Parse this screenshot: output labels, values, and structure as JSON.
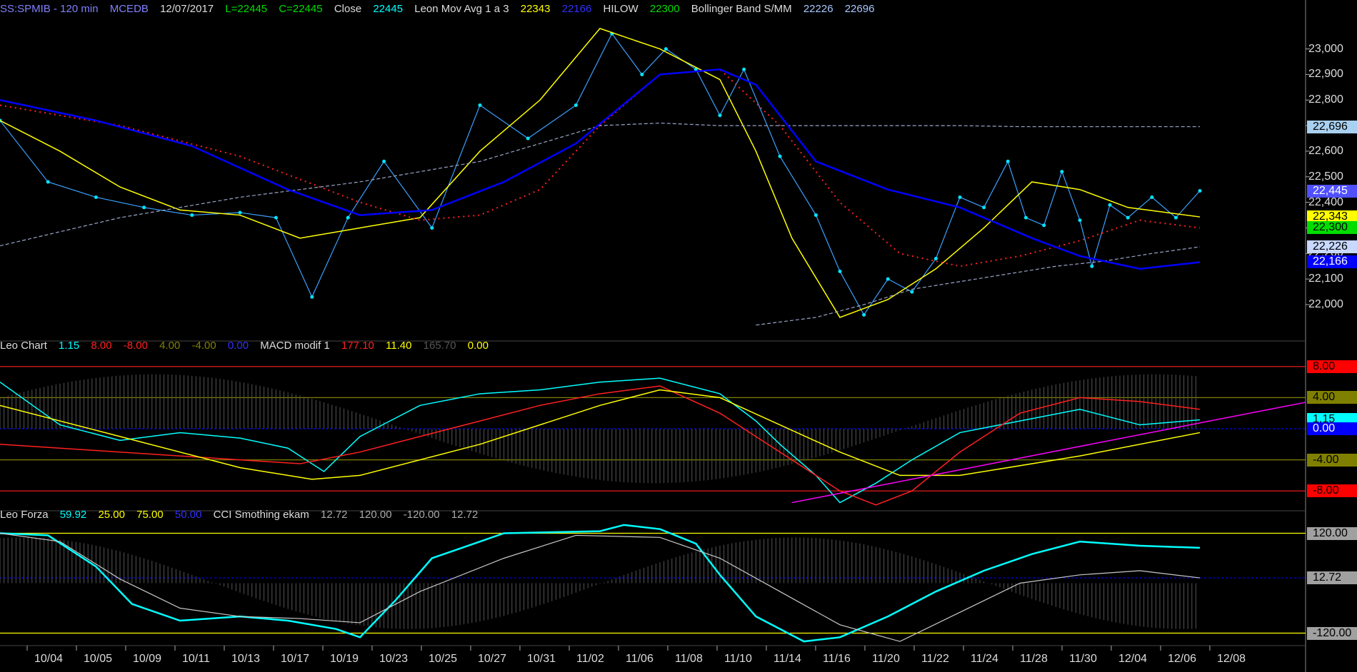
{
  "header": {
    "symbol": "SS:SPMIB - 120 min",
    "source": "MCEDB",
    "date": "12/07/2017",
    "low": "L=22445",
    "close_eq": "C=22445",
    "close_label": "Close",
    "close_val": "22445",
    "leon_label": "Leon Mov Avg 1 a 3",
    "leon_v1": "22343",
    "leon_v2": "22166",
    "hilow_label": "HILOW",
    "hilow_v": "22300",
    "bb_label": "Bollinger Band S/MM",
    "bb_v1": "22226",
    "bb_v2": "22696"
  },
  "header2": {
    "label": "Leo Chart",
    "v1": "1.15",
    "v2": "8.00",
    "v3": "-8.00",
    "v4": "4.00",
    "v5": "-4.00",
    "v6": "0.00",
    "macd_label": "MACD modif 1",
    "m1": "177.10",
    "m2": "11.40",
    "m3": "165.70",
    "m4": "0.00"
  },
  "header3": {
    "label": "Leo Forza",
    "v1": "59.92",
    "v2": "25.00",
    "v3": "75.00",
    "v4": "50.00",
    "cci_label": "CCI Smothing ekam",
    "c1": "12.72",
    "c2": "120.00",
    "c3": "-120.00",
    "c4": "12.72"
  },
  "colors": {
    "price": "#3aa0ff",
    "dot": "#00e5ff",
    "yellow": "#ffff00",
    "blue": "#0000ff",
    "red": "#ff2020",
    "green": "#00dd00",
    "grey": "#9aa6c8",
    "magenta": "#ff00ff",
    "cyan": "#00ffff"
  },
  "chart_data": [
    {
      "type": "line",
      "title": "SS:SPMIB - 120 min",
      "ylim": [
        21880,
        23130
      ],
      "y_ticks": [
        "22,000",
        "22,100",
        "22,200",
        "22,300",
        "22,400",
        "22,500",
        "22,600",
        "22,700",
        "22,800",
        "22,900",
        "23,000"
      ],
      "x_ticks": [
        "10/04",
        "10/05",
        "10/09",
        "10/11",
        "10/13",
        "10/17",
        "10/19",
        "10/23",
        "10/25",
        "10/27",
        "10/31",
        "11/02",
        "11/06",
        "11/08",
        "11/10",
        "11/14",
        "11/16",
        "11/20",
        "11/22",
        "11/24",
        "11/28",
        "11/30",
        "12/04",
        "12/06",
        "12/08"
      ],
      "value_badges": [
        {
          "text": "22,696",
          "value": 22696,
          "bg": "#a8d0f0",
          "fg": "#000000"
        },
        {
          "text": "22,445",
          "value": 22445,
          "bg": "#5050ff",
          "fg": "#ffffff"
        },
        {
          "text": "22,343",
          "value": 22343,
          "bg": "#ffff00",
          "fg": "#000000"
        },
        {
          "text": "22,300",
          "value": 22300,
          "bg": "#00dd00",
          "fg": "#000000"
        },
        {
          "text": "22,226",
          "value": 22226,
          "bg": "#c8d8ff",
          "fg": "#000000"
        },
        {
          "text": "22,166",
          "value": 22166,
          "bg": "#0000ff",
          "fg": "#ffffff"
        }
      ],
      "series": [
        {
          "name": "Close",
          "x_frac": [
            0,
            0.04,
            0.08,
            0.12,
            0.16,
            0.2,
            0.23,
            0.26,
            0.29,
            0.32,
            0.36,
            0.4,
            0.44,
            0.48,
            0.51,
            0.535,
            0.555,
            0.58,
            0.6,
            0.62,
            0.65,
            0.68,
            0.7,
            0.72,
            0.74,
            0.76,
            0.78,
            0.8,
            0.82,
            0.84,
            0.855,
            0.87,
            0.885,
            0.9,
            0.91,
            0.925,
            0.94,
            0.96,
            0.98,
            1.0
          ],
          "values": [
            22720,
            22480,
            22420,
            22380,
            22350,
            22360,
            22340,
            22030,
            22340,
            22560,
            22300,
            22780,
            22650,
            22780,
            23060,
            22900,
            23000,
            22920,
            22740,
            22920,
            22580,
            22350,
            22130,
            21960,
            22100,
            22050,
            22180,
            22420,
            22380,
            22560,
            22340,
            22310,
            22520,
            22330,
            22150,
            22390,
            22340,
            22420,
            22340,
            22445
          ]
        },
        {
          "name": "Leon Mov Avg 1 a 3",
          "x_frac": [
            0,
            0.05,
            0.1,
            0.15,
            0.2,
            0.25,
            0.3,
            0.35,
            0.4,
            0.45,
            0.5,
            0.55,
            0.6,
            0.63,
            0.66,
            0.7,
            0.74,
            0.78,
            0.82,
            0.86,
            0.9,
            0.94,
            1.0
          ],
          "values": [
            22720,
            22600,
            22460,
            22370,
            22350,
            22260,
            22300,
            22340,
            22600,
            22800,
            23080,
            23000,
            22880,
            22600,
            22260,
            21950,
            22020,
            22140,
            22300,
            22480,
            22450,
            22380,
            22343
          ]
        },
        {
          "name": "HILOW",
          "x_frac": [
            0,
            0.1,
            0.2,
            0.3,
            0.35,
            0.4,
            0.45,
            0.5,
            0.55,
            0.6,
            0.65,
            0.7,
            0.75,
            0.8,
            0.85,
            0.9,
            0.95,
            1.0
          ],
          "values": [
            22780,
            22700,
            22580,
            22400,
            22330,
            22350,
            22450,
            22700,
            22900,
            22920,
            22700,
            22400,
            22200,
            22150,
            22190,
            22250,
            22330,
            22300
          ]
        },
        {
          "name": "Bollinger Band S/MM",
          "x_frac": [
            0,
            0.1,
            0.2,
            0.3,
            0.4,
            0.5,
            0.55,
            0.6,
            0.65,
            0.7,
            0.75,
            0.8,
            0.85,
            0.9,
            0.95,
            1.0
          ],
          "values": [
            22230,
            22340,
            22420,
            22480,
            22560,
            22700,
            22710,
            22700,
            22700,
            22700,
            22700,
            22700,
            22696,
            22696,
            22696,
            22696
          ]
        },
        {
          "name": "Lower band",
          "x_frac": [
            0.63,
            0.68,
            0.72,
            0.76,
            0.8,
            0.84,
            0.88,
            0.92,
            0.96,
            1.0
          ],
          "values": [
            21920,
            21950,
            22000,
            22060,
            22090,
            22120,
            22150,
            22170,
            22200,
            22226
          ]
        },
        {
          "name": "Blue MA",
          "x_frac": [
            0,
            0.08,
            0.16,
            0.24,
            0.3,
            0.36,
            0.42,
            0.48,
            0.55,
            0.6,
            0.63,
            0.68,
            0.74,
            0.8,
            0.86,
            0.9,
            0.95,
            1.0
          ],
          "values": [
            22800,
            22720,
            22620,
            22450,
            22350,
            22370,
            22480,
            22630,
            22900,
            22920,
            22860,
            22560,
            22450,
            22380,
            22260,
            22190,
            22140,
            22166
          ]
        }
      ]
    },
    {
      "type": "line",
      "title": "Leo Chart / MACD modif 1",
      "ylim": [
        -10,
        10
      ],
      "levels": [
        8,
        4,
        0,
        -4,
        -8
      ],
      "badges": [
        {
          "text": "8.00",
          "value": 8,
          "bg": "#ff0000",
          "fg": "#000000"
        },
        {
          "text": "4.00",
          "value": 4,
          "bg": "#808000",
          "fg": "#000000"
        },
        {
          "text": "1.15",
          "value": 1.15,
          "bg": "#00ffff",
          "fg": "#000000"
        },
        {
          "text": "0.00",
          "value": 0,
          "bg": "#0000ff",
          "fg": "#ffffff"
        },
        {
          "text": "-4.00",
          "value": -4,
          "bg": "#808000",
          "fg": "#000000"
        },
        {
          "text": "-8.00",
          "value": -8,
          "bg": "#ff0000",
          "fg": "#000000"
        }
      ],
      "series": [
        {
          "name": "Leo Chart",
          "x_frac": [
            0,
            0.05,
            0.1,
            0.15,
            0.2,
            0.24,
            0.27,
            0.3,
            0.35,
            0.4,
            0.45,
            0.5,
            0.55,
            0.6,
            0.63,
            0.65,
            0.68,
            0.7,
            0.73,
            0.76,
            0.8,
            0.85,
            0.9,
            0.95,
            1.0
          ],
          "values": [
            6,
            0.5,
            -1.5,
            -0.5,
            -1.2,
            -2.5,
            -5.5,
            -1,
            3,
            4.5,
            5,
            6,
            6.5,
            4.5,
            1,
            -2,
            -6,
            -9.5,
            -7,
            -4,
            -0.5,
            1,
            2.5,
            0.5,
            1.15
          ]
        },
        {
          "name": "MACD modif 1",
          "x_frac": [
            0,
            0.1,
            0.2,
            0.25,
            0.3,
            0.35,
            0.4,
            0.45,
            0.5,
            0.55,
            0.6,
            0.65,
            0.7,
            0.73,
            0.76,
            0.8,
            0.85,
            0.9,
            0.95,
            1.0
          ],
          "values": [
            -2,
            -3,
            -4,
            -4.5,
            -3,
            -1,
            1,
            3,
            4.5,
            5.5,
            2,
            -3,
            -8,
            -9.8,
            -8,
            -3,
            2,
            4,
            3.5,
            2.5
          ]
        },
        {
          "name": "Signal",
          "x_frac": [
            0,
            0.1,
            0.2,
            0.26,
            0.3,
            0.4,
            0.5,
            0.55,
            0.6,
            0.7,
            0.75,
            0.8,
            0.9,
            1.0
          ],
          "values": [
            3,
            -1,
            -5,
            -6.5,
            -6,
            -2,
            3,
            5,
            4,
            -3,
            -6,
            -6,
            -3.5,
            -0.5
          ]
        }
      ]
    },
    {
      "type": "line",
      "title": "Leo Forza / CCI Smothing ekam",
      "ylim": [
        -150,
        150
      ],
      "levels": [
        120,
        12.72,
        -120
      ],
      "badges": [
        {
          "text": "120.00",
          "value": 120,
          "bg": "#a0a0a0",
          "fg": "#000000"
        },
        {
          "text": "12.72",
          "value": 12.72,
          "bg": "#a0a0a0",
          "fg": "#000000"
        },
        {
          "text": "-120.00",
          "value": -120,
          "bg": "#a0a0a0",
          "fg": "#000000"
        }
      ],
      "series": [
        {
          "name": "Leo Forza",
          "x_frac": [
            0,
            0.04,
            0.08,
            0.11,
            0.15,
            0.2,
            0.24,
            0.28,
            0.3,
            0.33,
            0.36,
            0.42,
            0.5,
            0.52,
            0.55,
            0.58,
            0.6,
            0.63,
            0.67,
            0.7,
            0.74,
            0.78,
            0.82,
            0.86,
            0.9,
            0.95,
            1.0
          ],
          "values": [
            120,
            115,
            40,
            -50,
            -90,
            -80,
            -90,
            -110,
            -130,
            -40,
            60,
            120,
            125,
            140,
            130,
            95,
            20,
            -80,
            -140,
            -130,
            -80,
            -20,
            30,
            70,
            100,
            90,
            85
          ]
        },
        {
          "name": "CCI Smothing ekam",
          "x_frac": [
            0,
            0.05,
            0.1,
            0.15,
            0.2,
            0.25,
            0.3,
            0.35,
            0.42,
            0.48,
            0.55,
            0.6,
            0.65,
            0.7,
            0.75,
            0.8,
            0.85,
            0.9,
            0.95,
            1.0
          ],
          "values": [
            120,
            100,
            10,
            -60,
            -80,
            -85,
            -95,
            -20,
            60,
            115,
            110,
            60,
            -20,
            -100,
            -140,
            -70,
            0,
            20,
            30,
            12.72
          ]
        }
      ]
    }
  ]
}
